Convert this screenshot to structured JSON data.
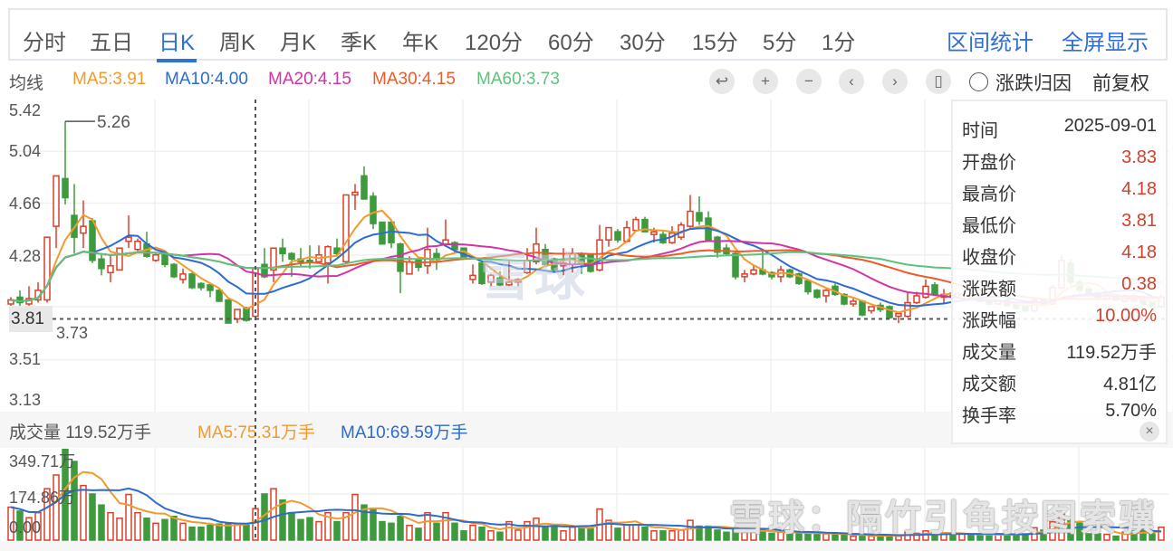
{
  "tabs": [
    "分时",
    "五日",
    "日K",
    "周K",
    "月K",
    "季K",
    "年K",
    "120分",
    "60分",
    "30分",
    "15分",
    "5分",
    "1分"
  ],
  "active_tab": "日K",
  "links": {
    "range_stats": "区间统计",
    "fullscreen": "全屏显示"
  },
  "ma_bar": {
    "label": "均线",
    "items": [
      {
        "text": "MA5:3.91",
        "color": "#f39a2e"
      },
      {
        "text": "MA10:4.00",
        "color": "#2c6bd0"
      },
      {
        "text": "MA20:4.15",
        "color": "#d233a8"
      },
      {
        "text": "MA30:4.15",
        "color": "#f05a2a"
      },
      {
        "text": "MA60:3.73",
        "color": "#5cc27e"
      }
    ]
  },
  "controls": {
    "icons": [
      "undo-icon",
      "zoom-in-icon",
      "zoom-out-icon",
      "chevron-left-icon",
      "chevron-right-icon",
      "candle-icon"
    ],
    "glyphs": [
      "↩",
      "+",
      "−",
      "‹",
      "›",
      "▯"
    ],
    "attribution_label": "涨跌归因",
    "adjust_label": "前复权"
  },
  "info_panel": {
    "rows": [
      {
        "k": "时间",
        "v": "2025-09-01",
        "up": false
      },
      {
        "k": "开盘价",
        "v": "3.83",
        "up": true
      },
      {
        "k": "最高价",
        "v": "4.18",
        "up": true
      },
      {
        "k": "最低价",
        "v": "3.81",
        "up": true
      },
      {
        "k": "收盘价",
        "v": "4.18",
        "up": true
      },
      {
        "k": "涨跌额",
        "v": "0.38",
        "up": true
      },
      {
        "k": "涨跌幅",
        "v": "10.00%",
        "up": true
      },
      {
        "k": "成交量",
        "v": "119.52万手",
        "up": false
      },
      {
        "k": "成交额",
        "v": "4.81亿",
        "up": false
      },
      {
        "k": "换手率",
        "v": "5.70%",
        "up": false
      }
    ],
    "close_glyph": "×"
  },
  "volume_header": {
    "label": "成交量 119.52万手",
    "ma5": "MA5:75.31万手",
    "ma10": "MA10:69.59万手"
  },
  "watermarks": {
    "center": "雪球",
    "corner": "雪球：隔竹引龟按图索骥"
  },
  "colors": {
    "up": "#d9402c",
    "down": "#3d9a3d",
    "accent": "#2f6fd6"
  },
  "chart_data": {
    "type": "candlestick",
    "title": "日K",
    "price_axis": {
      "ticks": [
        "5.42",
        "5.04",
        "4.66",
        "4.28",
        "3.51",
        "3.13"
      ],
      "range": [
        3.13,
        5.42
      ]
    },
    "volume_axis": {
      "ticks": [
        "349.71万",
        "174.86万",
        "0.00"
      ],
      "range": [
        0,
        349.71
      ],
      "unit": "万手"
    },
    "annotations": {
      "high": "5.26",
      "low": "3.73",
      "current": "3.81"
    },
    "crosshair_index": 27,
    "ma_periods": [
      5,
      10,
      20,
      30,
      60
    ],
    "volume_ma_periods": [
      5,
      10
    ],
    "candles_ohlcv": [
      [
        3.92,
        3.97,
        3.88,
        3.95,
        125
      ],
      [
        3.97,
        4.02,
        3.9,
        3.93,
        110
      ],
      [
        3.92,
        4.05,
        3.89,
        3.96,
        85
      ],
      [
        3.95,
        4.08,
        3.93,
        4.02,
        104
      ],
      [
        3.95,
        4.41,
        3.93,
        4.41,
        195
      ],
      [
        4.49,
        4.86,
        4.33,
        4.86,
        247
      ],
      [
        4.84,
        5.26,
        4.65,
        4.7,
        344
      ],
      [
        4.57,
        4.8,
        4.29,
        4.41,
        298
      ],
      [
        4.44,
        4.68,
        4.33,
        4.49,
        207
      ],
      [
        4.53,
        4.55,
        4.22,
        4.24,
        175
      ],
      [
        4.25,
        4.28,
        4.13,
        4.18,
        133
      ],
      [
        4.15,
        4.28,
        4.08,
        4.2,
        104
      ],
      [
        4.17,
        4.33,
        4.17,
        4.33,
        83
      ],
      [
        4.38,
        4.57,
        4.33,
        4.41,
        173
      ],
      [
        4.32,
        4.4,
        4.3,
        4.38,
        104
      ],
      [
        4.36,
        4.45,
        4.26,
        4.27,
        83
      ],
      [
        4.24,
        4.29,
        4.23,
        4.28,
        64
      ],
      [
        4.28,
        4.3,
        4.19,
        4.21,
        78
      ],
      [
        4.21,
        4.22,
        4.11,
        4.12,
        90
      ],
      [
        4.1,
        4.18,
        4.07,
        4.14,
        64
      ],
      [
        4.14,
        4.15,
        4.03,
        4.04,
        49
      ],
      [
        4.07,
        4.08,
        4.02,
        4.04,
        49
      ],
      [
        4.06,
        4.07,
        3.97,
        4.02,
        56
      ],
      [
        4.02,
        4.03,
        3.94,
        3.94,
        61
      ],
      [
        3.95,
        3.95,
        3.78,
        3.78,
        61
      ],
      [
        3.81,
        3.88,
        3.78,
        3.88,
        61
      ],
      [
        3.89,
        3.9,
        3.79,
        3.8,
        56
      ],
      [
        3.83,
        4.18,
        3.81,
        4.18,
        119.52
      ],
      [
        4.21,
        4.33,
        4.11,
        4.12,
        175
      ],
      [
        4.17,
        4.33,
        4.08,
        4.33,
        195
      ],
      [
        4.33,
        4.4,
        4.23,
        4.29,
        152
      ],
      [
        4.29,
        4.3,
        4.12,
        4.25,
        104
      ],
      [
        4.25,
        4.33,
        4.19,
        4.23,
        78
      ],
      [
        4.24,
        4.35,
        4.18,
        4.23,
        85
      ],
      [
        4.23,
        4.35,
        4.22,
        4.28,
        70
      ],
      [
        4.22,
        4.35,
        4.07,
        4.34,
        104
      ],
      [
        4.33,
        4.4,
        4.27,
        4.29,
        70
      ],
      [
        4.23,
        4.72,
        4.22,
        4.72,
        104
      ],
      [
        4.72,
        4.8,
        4.61,
        4.74,
        173
      ],
      [
        4.86,
        4.93,
        4.69,
        4.69,
        133
      ],
      [
        4.71,
        4.74,
        4.47,
        4.51,
        121
      ],
      [
        4.52,
        4.52,
        4.36,
        4.36,
        70
      ],
      [
        4.52,
        4.53,
        4.33,
        4.37,
        64
      ],
      [
        4.36,
        4.37,
        4.0,
        4.16,
        90
      ],
      [
        4.14,
        4.27,
        4.14,
        4.23,
        56
      ],
      [
        4.24,
        4.25,
        4.16,
        4.19,
        45
      ],
      [
        4.2,
        4.48,
        4.14,
        4.32,
        104
      ],
      [
        4.29,
        4.33,
        4.17,
        4.25,
        64
      ],
      [
        4.36,
        4.54,
        4.34,
        4.39,
        104
      ],
      [
        4.37,
        4.38,
        4.29,
        4.32,
        64
      ],
      [
        4.33,
        4.33,
        4.26,
        4.26,
        35
      ],
      [
        4.1,
        4.21,
        4.07,
        4.13,
        56
      ],
      [
        4.22,
        4.22,
        4.06,
        4.07,
        49
      ],
      [
        4.08,
        4.14,
        4.05,
        4.13,
        35
      ],
      [
        4.11,
        4.16,
        4.05,
        4.06,
        30
      ],
      [
        4.06,
        4.24,
        4.05,
        4.08,
        70
      ],
      [
        4.08,
        4.11,
        4.05,
        4.1,
        38
      ],
      [
        4.15,
        4.33,
        4.14,
        4.24,
        70
      ],
      [
        4.23,
        4.48,
        4.21,
        4.36,
        83
      ],
      [
        4.32,
        4.36,
        4.2,
        4.21,
        53
      ],
      [
        4.25,
        4.26,
        4.16,
        4.17,
        53
      ],
      [
        4.2,
        4.33,
        4.13,
        4.22,
        35
      ],
      [
        4.21,
        4.33,
        4.15,
        4.29,
        49
      ],
      [
        4.28,
        4.3,
        4.14,
        4.22,
        49
      ],
      [
        4.28,
        4.29,
        4.15,
        4.16,
        43
      ],
      [
        4.17,
        4.5,
        4.16,
        4.39,
        118
      ],
      [
        4.39,
        4.48,
        4.34,
        4.48,
        75
      ],
      [
        4.45,
        4.47,
        4.37,
        4.39,
        45
      ],
      [
        4.38,
        4.53,
        4.37,
        4.48,
        58
      ],
      [
        4.46,
        4.56,
        4.45,
        4.54,
        58
      ],
      [
        4.54,
        4.56,
        4.45,
        4.45,
        49
      ],
      [
        4.43,
        4.48,
        4.37,
        4.45,
        35
      ],
      [
        4.43,
        4.45,
        4.36,
        4.37,
        35
      ],
      [
        4.37,
        4.49,
        4.36,
        4.44,
        35
      ],
      [
        4.41,
        4.52,
        4.39,
        4.5,
        38
      ],
      [
        4.49,
        4.72,
        4.48,
        4.6,
        75
      ],
      [
        4.59,
        4.71,
        4.5,
        4.53,
        53
      ],
      [
        4.55,
        4.6,
        4.38,
        4.39,
        53
      ],
      [
        4.41,
        4.42,
        4.26,
        4.3,
        38
      ],
      [
        4.33,
        4.36,
        4.28,
        4.29,
        30
      ],
      [
        4.29,
        4.3,
        4.1,
        4.12,
        47
      ],
      [
        4.12,
        4.17,
        4.08,
        4.14,
        30
      ],
      [
        4.14,
        4.2,
        4.13,
        4.17,
        30
      ],
      [
        4.17,
        4.31,
        4.13,
        4.14,
        38
      ],
      [
        4.15,
        4.16,
        4.1,
        4.12,
        26
      ],
      [
        4.12,
        4.2,
        4.08,
        4.17,
        30
      ],
      [
        4.17,
        4.18,
        4.11,
        4.12,
        26
      ],
      [
        4.14,
        4.15,
        4.06,
        4.07,
        24
      ],
      [
        4.09,
        4.1,
        3.99,
        4.01,
        30
      ],
      [
        4.02,
        4.03,
        3.96,
        3.97,
        24
      ],
      [
        3.98,
        4.03,
        3.93,
        4.02,
        24
      ],
      [
        4.05,
        4.07,
        3.98,
        3.99,
        22
      ],
      [
        3.99,
        4.0,
        3.91,
        3.92,
        18
      ],
      [
        3.92,
        3.96,
        3.9,
        3.94,
        15
      ],
      [
        3.94,
        3.95,
        3.83,
        3.84,
        18
      ],
      [
        3.87,
        3.9,
        3.85,
        3.9,
        15
      ],
      [
        3.91,
        3.93,
        3.86,
        3.88,
        18
      ],
      [
        3.9,
        3.91,
        3.81,
        3.82,
        18
      ],
      [
        3.83,
        3.86,
        3.78,
        3.85,
        15
      ],
      [
        3.83,
        4.01,
        3.82,
        3.93,
        30
      ],
      [
        3.93,
        4.01,
        3.92,
        3.98,
        26
      ],
      [
        3.97,
        4.1,
        3.96,
        4.05,
        35
      ],
      [
        4.06,
        4.08,
        3.98,
        3.99,
        24
      ],
      [
        3.97,
        4.03,
        3.92,
        3.99,
        24
      ],
      [
        4.0,
        4.02,
        3.96,
        3.97,
        24
      ],
      [
        3.96,
        4.0,
        3.95,
        3.99,
        24
      ],
      [
        3.99,
        4.0,
        3.95,
        3.96,
        18
      ],
      [
        3.97,
        3.98,
        3.93,
        3.94,
        18
      ],
      [
        3.95,
        3.96,
        3.91,
        3.92,
        22
      ],
      [
        3.92,
        3.96,
        3.91,
        3.95,
        22
      ],
      [
        3.95,
        3.96,
        3.9,
        3.91,
        22
      ],
      [
        3.92,
        3.93,
        3.88,
        3.89,
        22
      ],
      [
        3.9,
        3.91,
        3.86,
        3.87,
        24
      ],
      [
        3.87,
        3.97,
        3.86,
        3.95,
        47
      ],
      [
        3.95,
        3.96,
        3.91,
        3.92,
        38
      ],
      [
        3.92,
        4.06,
        3.91,
        4.04,
        70
      ],
      [
        4.04,
        4.28,
        4.03,
        4.24,
        100
      ],
      [
        4.22,
        4.25,
        4.06,
        4.08,
        81
      ],
      [
        4.08,
        4.1,
        4.0,
        4.02,
        64
      ],
      [
        4.03,
        4.05,
        3.98,
        3.99,
        24
      ],
      [
        4.0,
        4.01,
        3.96,
        3.97,
        24
      ],
      [
        3.96,
        4.0,
        3.95,
        3.99,
        22
      ],
      [
        3.99,
        4.0,
        3.94,
        3.95,
        15
      ],
      [
        3.94,
        3.99,
        3.93,
        3.98,
        30
      ],
      [
        3.98,
        3.99,
        3.93,
        3.94,
        35
      ],
      [
        3.95,
        3.96,
        3.91,
        3.92,
        38
      ],
      [
        3.93,
        3.94,
        3.89,
        3.9,
        24
      ],
      [
        3.9,
        3.99,
        3.89,
        3.97,
        49
      ]
    ]
  }
}
